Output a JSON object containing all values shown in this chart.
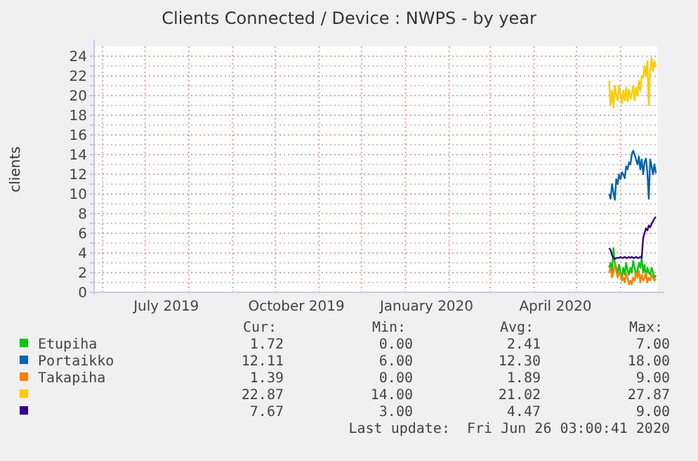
{
  "chart_data": {
    "type": "line",
    "title": "Clients Connected / Device : NWPS - by year",
    "ylabel": "clients",
    "x": [
      "2020-05-24",
      "2020-05-25",
      "2020-05-26",
      "2020-05-27",
      "2020-05-28",
      "2020-05-29",
      "2020-05-30",
      "2020-05-31",
      "2020-06-01",
      "2020-06-02",
      "2020-06-03",
      "2020-06-04",
      "2020-06-05",
      "2020-06-06",
      "2020-06-07",
      "2020-06-08",
      "2020-06-09",
      "2020-06-10",
      "2020-06-11",
      "2020-06-12",
      "2020-06-13",
      "2020-06-14",
      "2020-06-15",
      "2020-06-16",
      "2020-06-17",
      "2020-06-18",
      "2020-06-19",
      "2020-06-20",
      "2020-06-21",
      "2020-06-22",
      "2020-06-23",
      "2020-06-24",
      "2020-06-25",
      "2020-06-26"
    ],
    "series": [
      {
        "name": "Etupiha",
        "color": "#00cc00",
        "values": [
          2.5,
          3,
          2,
          4.5,
          3,
          2.5,
          2,
          2.8,
          2,
          1.5,
          2.5,
          1.8,
          3,
          2.2,
          1.8,
          2.5,
          2,
          3.2,
          2.5,
          1.8,
          2.2,
          3,
          2.5,
          3.5,
          2,
          2.8,
          1.5,
          2.5,
          2,
          1.8,
          2.5,
          2,
          1.5,
          1.72
        ]
      },
      {
        "name": "Portaikko",
        "color": "#0066b3",
        "values": [
          10,
          9.5,
          11,
          10.2,
          9.4,
          11.5,
          11,
          12,
          11.5,
          12.2,
          12,
          11.6,
          12.8,
          12.5,
          13.2,
          13,
          14,
          14.4,
          14,
          13.5,
          13,
          13.8,
          12.5,
          13.5,
          12,
          13.2,
          13.6,
          12.2,
          9.5,
          13.5,
          12.8,
          12,
          13,
          12.11
        ]
      },
      {
        "name": "Takapiha",
        "color": "#ff8000",
        "values": [
          2,
          2.5,
          1.5,
          2,
          2.8,
          2.2,
          1.5,
          2,
          1.8,
          1.2,
          1.5,
          1,
          2,
          1.5,
          0.8,
          1.2,
          0.8,
          1.5,
          1.2,
          2,
          1.5,
          2.2,
          1,
          1.8,
          1.2,
          1.5,
          2,
          1,
          1.5,
          1.2,
          1.8,
          1.5,
          1.2,
          1.39
        ]
      },
      {
        "color": "#ffcc00",
        "values": [
          21.5,
          19,
          20.5,
          18.8,
          21,
          20,
          19.5,
          21,
          20,
          19.2,
          20.5,
          19.5,
          20.8,
          19.4,
          20.6,
          19.6,
          20.2,
          21,
          19.5,
          20.8,
          20,
          21.5,
          20.5,
          22,
          21.8,
          23,
          22,
          23.5,
          19,
          22.5,
          23.8,
          22.5,
          23.5,
          22.87
        ]
      },
      {
        "color": "#330099",
        "values": [
          4.5,
          4.3,
          3.8,
          3.5,
          3.4,
          3.5,
          3.5,
          3.5,
          3.6,
          3.5,
          3.5,
          3.6,
          3.5,
          3.5,
          3.6,
          3.5,
          3.6,
          3.5,
          3.5,
          3.6,
          3.5,
          3.5,
          3.6,
          3.5,
          5.5,
          6,
          6.5,
          6.3,
          6.8,
          6.6,
          7,
          7.2,
          7.5,
          7.67
        ]
      }
    ],
    "xlim": [
      "2019-05-26",
      "2020-06-27"
    ],
    "xticks": [
      {
        "value": "2019-06-01",
        "label": null
      },
      {
        "value": "2019-07-01",
        "label": null
      },
      {
        "value": "2019-07-16",
        "label": "July 2019"
      },
      {
        "value": "2019-08-01",
        "label": null
      },
      {
        "value": "2019-09-01",
        "label": null
      },
      {
        "value": "2019-10-01",
        "label": null
      },
      {
        "value": "2019-10-16",
        "label": "October 2019"
      },
      {
        "value": "2019-11-01",
        "label": null
      },
      {
        "value": "2019-12-01",
        "label": null
      },
      {
        "value": "2020-01-01",
        "label": null
      },
      {
        "value": "2020-01-16",
        "label": "January 2020"
      },
      {
        "value": "2020-02-01",
        "label": null
      },
      {
        "value": "2020-03-01",
        "label": null
      },
      {
        "value": "2020-04-01",
        "label": null
      },
      {
        "value": "2020-04-16",
        "label": "April 2020"
      },
      {
        "value": "2020-05-01",
        "label": null
      },
      {
        "value": "2020-06-01",
        "label": null
      }
    ],
    "ylim": [
      0,
      25
    ],
    "yticks": [
      0,
      {
        "value": 1,
        "label": null
      },
      2,
      {
        "value": 3,
        "label": null
      },
      4,
      {
        "value": 5,
        "label": null
      },
      6,
      {
        "value": 7,
        "label": null
      },
      8,
      {
        "value": 9,
        "label": null
      },
      10,
      {
        "value": 11,
        "label": null
      },
      12,
      {
        "value": 13,
        "label": null
      },
      14,
      {
        "value": 15,
        "label": null
      },
      16,
      {
        "value": 17,
        "label": null
      },
      18,
      {
        "value": 19,
        "label": null
      },
      20,
      {
        "value": 21,
        "label": null
      },
      22,
      {
        "value": 23,
        "label": null
      },
      24
    ],
    "grid": true,
    "legend": "bottom",
    "line_style": "solid",
    "annotations": [
      "Cur:",
      "Min:",
      "Avg:",
      "Max:",
      "1.72",
      "0.00",
      "2.41",
      "7.00",
      "12.11",
      "6.00",
      "12.30",
      "18.00",
      "1.39",
      "0.00",
      "1.89",
      "9.00",
      "22.87",
      "14.00",
      "21.02",
      "27.87",
      "7.67",
      "3.00",
      "4.47",
      "9.00",
      "Last update:  Fri Jun 26 03:00:41 2020"
    ]
  }
}
